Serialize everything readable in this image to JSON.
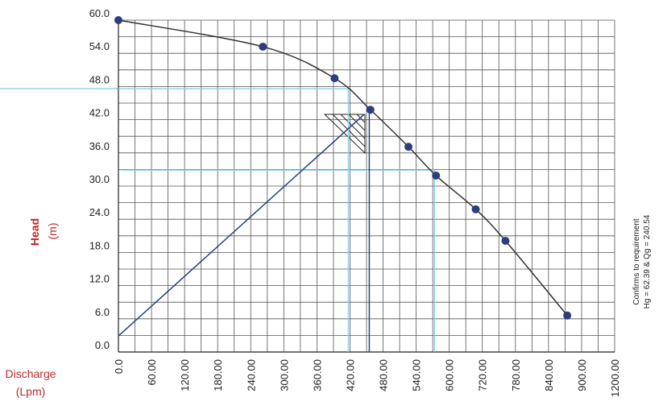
{
  "chart_data": {
    "type": "line",
    "y_label": [
      "Head",
      "(m)"
    ],
    "x_label": [
      "Discharge",
      "(Lpm)"
    ],
    "note": [
      "Confirms to requirement",
      "Hg = 62.39 & Qg = 240.54"
    ],
    "x": [
      0,
      262,
      392,
      457,
      526,
      576,
      696,
      762,
      874
    ],
    "series": [
      {
        "color": "#2b3f7e",
        "values": [
          60,
          55.2,
          49.5,
          43.8,
          37.1,
          31.9,
          25.8,
          20.1,
          6.6
        ]
      }
    ],
    "ylim": [
      0,
      60
    ],
    "yticks": [
      {
        "value": 0,
        "label": "0.0"
      },
      {
        "value": 6,
        "label": "6.0"
      },
      {
        "value": 12,
        "label": "12.0"
      },
      {
        "value": 18,
        "label": "18.0"
      },
      {
        "value": 24,
        "label": "24.0"
      },
      {
        "value": 30,
        "label": "30.0"
      },
      {
        "value": 36,
        "label": "36.0"
      },
      {
        "value": 42,
        "label": "42.0"
      },
      {
        "value": 48,
        "label": "48.0"
      },
      {
        "value": 54,
        "label": "54.0"
      },
      {
        "value": 60,
        "label": "60.0"
      }
    ],
    "xlim": [
      0,
      1200
    ],
    "xticks": [
      {
        "value": 0,
        "label": "0.0"
      },
      {
        "value": 60,
        "label": "60.00"
      },
      {
        "value": 120,
        "label": "120.00"
      },
      {
        "value": 180,
        "label": "180.00"
      },
      {
        "value": 240,
        "label": "240.00"
      },
      {
        "value": 300,
        "label": "300.00"
      },
      {
        "value": 360,
        "label": "360.00"
      },
      {
        "value": 420,
        "label": "420.00"
      },
      {
        "value": 480,
        "label": "480.00"
      },
      {
        "value": 540,
        "label": "540.00"
      },
      {
        "value": 600,
        "label": "600.00"
      },
      {
        "value": 720,
        "label": "720.00"
      },
      {
        "value": 780,
        "label": "780.00"
      },
      {
        "value": 840,
        "label": "840.00"
      },
      {
        "value": 900,
        "label": "900.00"
      },
      {
        "value": 1200,
        "label": "1200.00"
      }
    ],
    "guides": [
      {
        "color": "#8fd0ea",
        "x": [
          0,
          417,
          417
        ],
        "y": [
          47.6,
          47.6,
          0
        ]
      },
      {
        "color": "#8fd0ea",
        "x": [
          5,
          573,
          573
        ],
        "y": [
          32.9,
          32.9,
          0
        ]
      },
      {
        "color": "#2b3f7e",
        "x": [
          0,
          445
        ],
        "y": [
          2.9,
          42.9
        ]
      },
      {
        "color": "#2b3f7e",
        "x": [
          455,
          455
        ],
        "y": [
          43.5,
          0
        ]
      }
    ],
    "grid": true
  }
}
